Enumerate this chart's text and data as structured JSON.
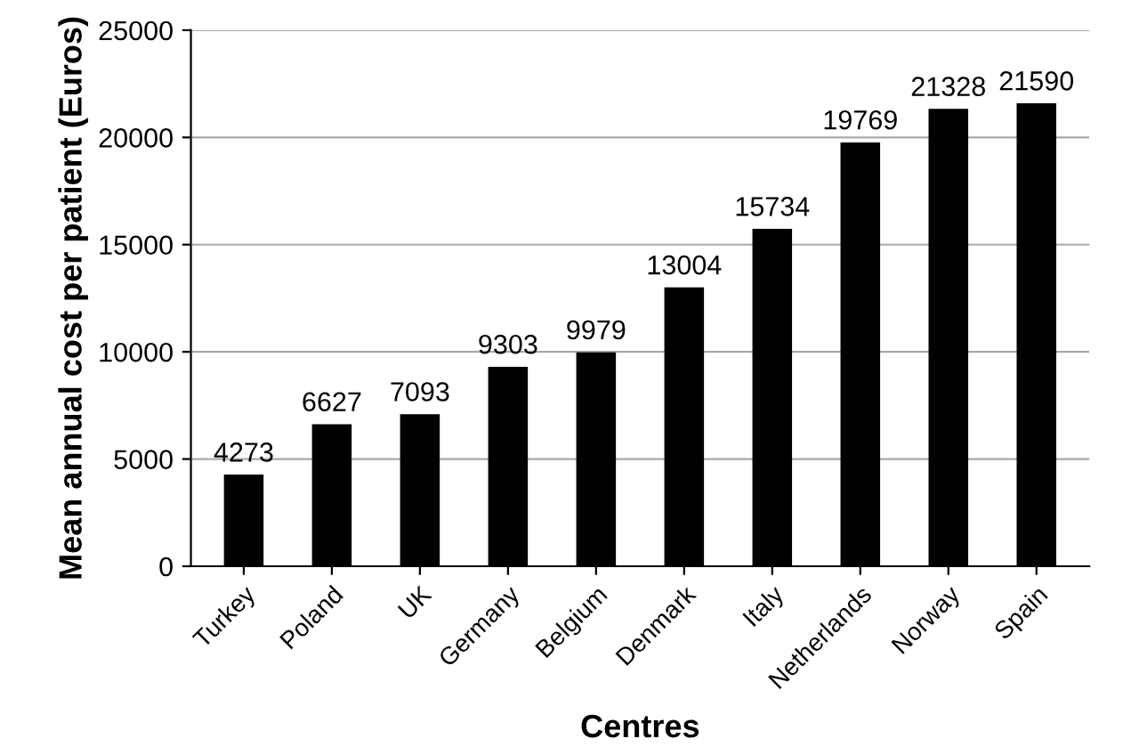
{
  "chart_data": {
    "type": "bar",
    "xlabel": "Centres",
    "ylabel": "Mean annual cost per patient (Euros)",
    "categories": [
      "Turkey",
      "Poland",
      "UK",
      "Germany",
      "Belgium",
      "Denmark",
      "Italy",
      "Netherlands",
      "Norway",
      "Spain"
    ],
    "values": [
      4273,
      6627,
      7093,
      9303,
      9979,
      13004,
      15734,
      19769,
      21328,
      21590
    ],
    "color": "#000000",
    "ylim": [
      0,
      25000
    ],
    "yticks": [
      0,
      5000,
      10000,
      15000,
      20000,
      25000
    ],
    "grid": "y",
    "data_labels": true
  }
}
